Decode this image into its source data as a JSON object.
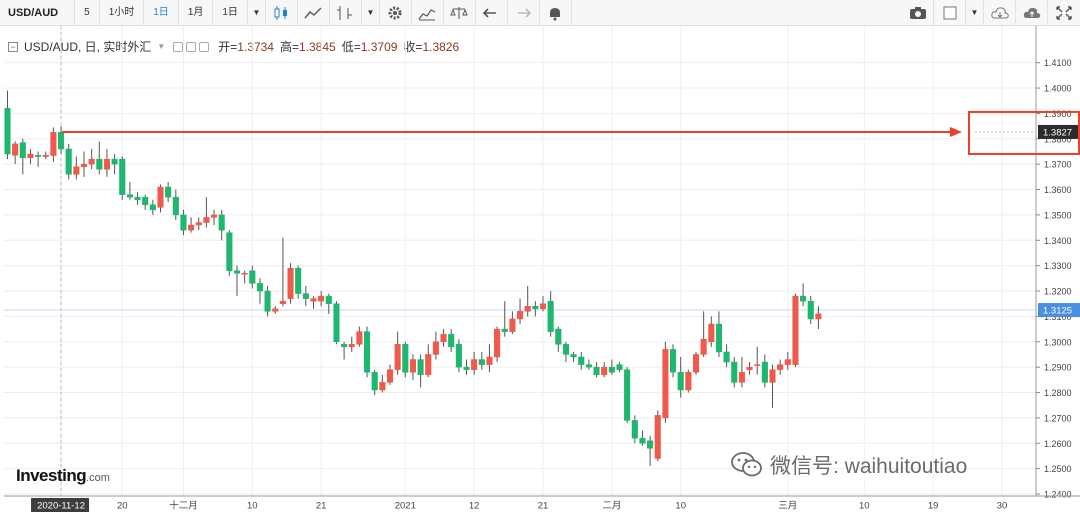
{
  "toolbar": {
    "symbol": "USD/AUD",
    "intervals": [
      "5",
      "1小时",
      "1日",
      "1月"
    ],
    "active_interval": "1日",
    "range": "1日",
    "icons": [
      "candlestick-icon",
      "line-chart-icon",
      "indicator-icon",
      "settings-gear-icon",
      "studies-icon",
      "compare-scale-icon",
      "undo-icon",
      "redo-icon",
      "alert-bell-icon",
      "camera-icon",
      "color-box-icon",
      "cloud-save-icon",
      "cloud-load-icon",
      "fullscreen-icon"
    ]
  },
  "info": {
    "title": "USD/AUD, 日, 实时外汇",
    "open_label": "开=",
    "open": "1.3734",
    "high_label": "高=",
    "high": "1.3845",
    "low_label": "低=",
    "low": "1.3709",
    "close_label": "收=",
    "close": "1.3826"
  },
  "watermark": "微信号: waihuitoutiao",
  "logo": {
    "main": "Investing",
    "suffix": ".com"
  },
  "colors": {
    "up": "#ef5a4c",
    "down": "#1fb770",
    "annotation": "#e8402a",
    "grid": "#eeeeee",
    "price_tag": "#2b2b2b",
    "current_tag": "#4a8ee0"
  },
  "chart_data": {
    "type": "candlestick",
    "ylim": [
      1.24,
      1.415
    ],
    "y_ticks": [
      "1.4100",
      "1.4000",
      "1.3900",
      "1.3800",
      "1.3700",
      "1.3600",
      "1.3500",
      "1.3400",
      "1.3300",
      "1.3200",
      "1.3100",
      "1.3000",
      "1.2900",
      "1.2800",
      "1.2700",
      "1.2600",
      "1.2500",
      "1.2400"
    ],
    "x_ticks": [
      {
        "i": 7,
        "label": "2020-11-12",
        "highlight": true
      },
      {
        "i": 15,
        "label": "20"
      },
      {
        "i": 23,
        "label": "十二月"
      },
      {
        "i": 32,
        "label": "10"
      },
      {
        "i": 41,
        "label": "21"
      },
      {
        "i": 52,
        "label": "2021"
      },
      {
        "i": 61,
        "label": "12"
      },
      {
        "i": 70,
        "label": "21"
      },
      {
        "i": 79,
        "label": "二月"
      },
      {
        "i": 88,
        "label": "10"
      },
      {
        "i": 102,
        "label": "三月"
      },
      {
        "i": 112,
        "label": "10"
      },
      {
        "i": 121,
        "label": "19"
      },
      {
        "i": 130,
        "label": "30"
      }
    ],
    "price_tags": [
      {
        "value": 1.3827,
        "label": "1.3827",
        "style": "dark"
      },
      {
        "value": 1.3125,
        "label": "1.3125",
        "style": "current"
      }
    ],
    "candles": [
      [
        1.392,
        1.374,
        1.399,
        1.372
      ],
      [
        1.3735,
        1.378,
        1.379,
        1.37
      ],
      [
        1.3785,
        1.3725,
        1.38,
        1.366
      ],
      [
        1.3725,
        1.374,
        1.376,
        1.37
      ],
      [
        1.3735,
        1.373,
        1.375,
        1.369
      ],
      [
        1.373,
        1.3735,
        1.375,
        1.372
      ],
      [
        1.3734,
        1.3826,
        1.3845,
        1.3709
      ],
      [
        1.3826,
        1.376,
        1.385,
        1.374
      ],
      [
        1.376,
        1.366,
        1.378,
        1.364
      ],
      [
        1.366,
        1.369,
        1.373,
        1.364
      ],
      [
        1.369,
        1.37,
        1.375,
        1.365
      ],
      [
        1.37,
        1.372,
        1.376,
        1.368
      ],
      [
        1.372,
        1.368,
        1.379,
        1.366
      ],
      [
        1.368,
        1.372,
        1.376,
        1.365
      ],
      [
        1.372,
        1.37,
        1.374,
        1.366
      ],
      [
        1.372,
        1.358,
        1.373,
        1.356
      ],
      [
        1.358,
        1.357,
        1.363,
        1.356
      ],
      [
        1.357,
        1.356,
        1.359,
        1.354
      ],
      [
        1.357,
        1.354,
        1.358,
        1.352
      ],
      [
        1.354,
        1.352,
        1.356,
        1.35
      ],
      [
        1.353,
        1.361,
        1.362,
        1.351
      ],
      [
        1.361,
        1.357,
        1.363,
        1.355
      ],
      [
        1.357,
        1.35,
        1.36,
        1.348
      ],
      [
        1.35,
        1.344,
        1.352,
        1.342
      ],
      [
        1.344,
        1.346,
        1.349,
        1.343
      ],
      [
        1.346,
        1.347,
        1.349,
        1.344
      ],
      [
        1.347,
        1.349,
        1.357,
        1.345
      ],
      [
        1.349,
        1.35,
        1.352,
        1.346
      ],
      [
        1.35,
        1.344,
        1.352,
        1.34
      ],
      [
        1.343,
        1.328,
        1.344,
        1.326
      ],
      [
        1.328,
        1.327,
        1.33,
        1.318
      ],
      [
        1.327,
        1.327,
        1.328,
        1.323
      ],
      [
        1.328,
        1.323,
        1.33,
        1.321
      ],
      [
        1.323,
        1.32,
        1.325,
        1.315
      ],
      [
        1.32,
        1.312,
        1.322,
        1.31
      ],
      [
        1.312,
        1.313,
        1.314,
        1.311
      ],
      [
        1.315,
        1.316,
        1.341,
        1.314
      ],
      [
        1.317,
        1.329,
        1.331,
        1.315
      ],
      [
        1.329,
        1.319,
        1.33,
        1.317
      ],
      [
        1.319,
        1.317,
        1.322,
        1.314
      ],
      [
        1.316,
        1.317,
        1.318,
        1.313
      ],
      [
        1.316,
        1.318,
        1.32,
        1.314
      ],
      [
        1.318,
        1.315,
        1.319,
        1.311
      ],
      [
        1.315,
        1.3,
        1.316,
        1.299
      ],
      [
        1.299,
        1.298,
        1.3,
        1.293
      ],
      [
        1.298,
        1.299,
        1.302,
        1.296
      ],
      [
        1.299,
        1.304,
        1.306,
        1.298
      ],
      [
        1.304,
        1.288,
        1.306,
        1.286
      ],
      [
        1.288,
        1.281,
        1.289,
        1.279
      ],
      [
        1.281,
        1.284,
        1.287,
        1.28
      ],
      [
        1.284,
        1.289,
        1.291,
        1.283
      ],
      [
        1.289,
        1.299,
        1.304,
        1.287
      ],
      [
        1.299,
        1.288,
        1.3,
        1.286
      ],
      [
        1.288,
        1.293,
        1.295,
        1.285
      ],
      [
        1.293,
        1.287,
        1.295,
        1.282
      ],
      [
        1.287,
        1.295,
        1.299,
        1.286
      ],
      [
        1.295,
        1.3,
        1.304,
        1.293
      ],
      [
        1.3,
        1.303,
        1.305,
        1.298
      ],
      [
        1.303,
        1.298,
        1.305,
        1.296
      ],
      [
        1.299,
        1.29,
        1.301,
        1.288
      ],
      [
        1.29,
        1.289,
        1.293,
        1.287
      ],
      [
        1.289,
        1.293,
        1.296,
        1.287
      ],
      [
        1.293,
        1.291,
        1.296,
        1.289
      ],
      [
        1.291,
        1.294,
        1.299,
        1.288
      ],
      [
        1.294,
        1.305,
        1.306,
        1.292
      ],
      [
        1.305,
        1.304,
        1.316,
        1.302
      ],
      [
        1.304,
        1.309,
        1.312,
        1.303
      ],
      [
        1.309,
        1.312,
        1.317,
        1.307
      ],
      [
        1.312,
        1.314,
        1.322,
        1.31
      ],
      [
        1.314,
        1.313,
        1.316,
        1.31
      ],
      [
        1.313,
        1.315,
        1.318,
        1.312
      ],
      [
        1.316,
        1.304,
        1.32,
        1.302
      ],
      [
        1.305,
        1.299,
        1.306,
        1.296
      ],
      [
        1.299,
        1.295,
        1.3,
        1.292
      ],
      [
        1.295,
        1.294,
        1.296,
        1.292
      ],
      [
        1.294,
        1.291,
        1.296,
        1.289
      ],
      [
        1.291,
        1.29,
        1.293,
        1.289
      ],
      [
        1.29,
        1.287,
        1.292,
        1.286
      ],
      [
        1.287,
        1.29,
        1.292,
        1.286
      ],
      [
        1.29,
        1.288,
        1.293,
        1.287
      ],
      [
        1.291,
        1.289,
        1.292,
        1.288
      ],
      [
        1.289,
        1.269,
        1.29,
        1.268
      ],
      [
        1.269,
        1.262,
        1.271,
        1.26
      ],
      [
        1.262,
        1.26,
        1.265,
        1.259
      ],
      [
        1.261,
        1.258,
        1.263,
        1.251
      ],
      [
        1.254,
        1.271,
        1.273,
        1.253
      ],
      [
        1.27,
        1.297,
        1.3,
        1.268
      ],
      [
        1.297,
        1.288,
        1.299,
        1.286
      ],
      [
        1.288,
        1.281,
        1.294,
        1.278
      ],
      [
        1.281,
        1.288,
        1.289,
        1.28
      ],
      [
        1.288,
        1.295,
        1.296,
        1.287
      ],
      [
        1.295,
        1.301,
        1.312,
        1.294
      ],
      [
        1.3,
        1.307,
        1.31,
        1.298
      ],
      [
        1.307,
        1.296,
        1.312,
        1.294
      ],
      [
        1.296,
        1.292,
        1.299,
        1.29
      ],
      [
        1.292,
        1.284,
        1.294,
        1.282
      ],
      [
        1.284,
        1.288,
        1.294,
        1.282
      ],
      [
        1.289,
        1.29,
        1.292,
        1.287
      ],
      [
        1.291,
        1.291,
        1.298,
        1.287
      ],
      [
        1.292,
        1.284,
        1.295,
        1.282
      ],
      [
        1.284,
        1.289,
        1.291,
        1.274
      ],
      [
        1.289,
        1.291,
        1.293,
        1.287
      ],
      [
        1.291,
        1.293,
        1.296,
        1.289
      ],
      [
        1.291,
        1.318,
        1.319,
        1.29
      ],
      [
        1.318,
        1.316,
        1.323,
        1.314
      ],
      [
        1.316,
        1.309,
        1.318,
        1.307
      ],
      [
        1.309,
        1.311,
        1.314,
        1.305
      ]
    ]
  }
}
